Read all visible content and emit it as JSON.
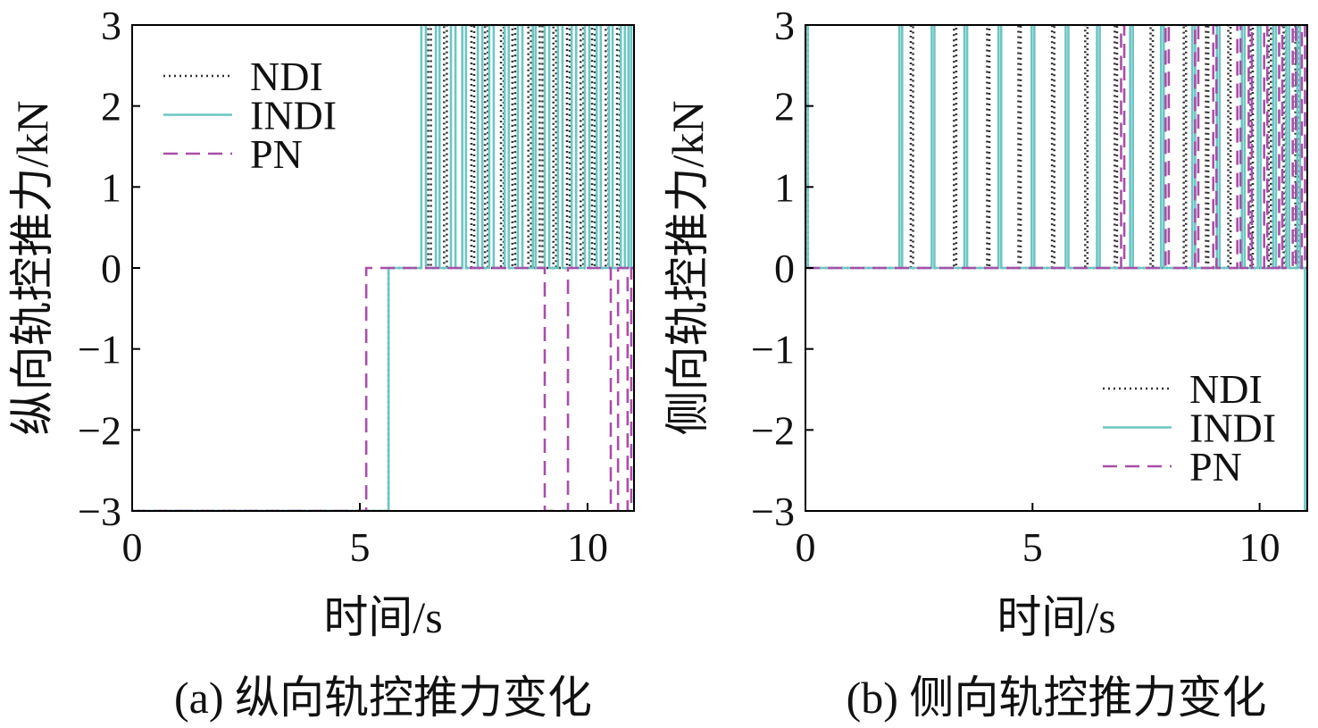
{
  "chart_data": [
    {
      "type": "line",
      "step": true,
      "caption": "(a) 纵向轨控推力变化",
      "xlabel": "时间/s",
      "ylabel": "纵向轨控推力/kN",
      "xlim": [
        0,
        11.02
      ],
      "ylim": [
        -3,
        3
      ],
      "xticks": [
        0,
        5,
        10
      ],
      "xtick_labels": [
        "0",
        "5",
        "10"
      ],
      "yticks": [
        -3,
        -2,
        -1,
        0,
        1,
        2,
        3
      ],
      "ytick_labels": [
        "−3",
        "−2",
        "−1",
        "0",
        "1",
        "2",
        "3"
      ],
      "grid": false,
      "legend": "top-left",
      "series": [
        {
          "name": "NDI",
          "color": "#333333",
          "line_style": "dotted",
          "x": [
            0,
            5.63,
            6.5,
            6.56,
            6.85,
            6.91,
            7.45,
            7.51,
            7.75,
            7.81,
            8.1,
            8.16,
            8.35,
            8.41,
            8.7,
            8.76,
            8.95,
            9.01,
            9.25,
            9.31,
            9.55,
            9.61,
            9.85,
            9.91,
            10.1,
            10.16,
            10.4,
            10.46,
            10.65,
            10.71,
            11.02
          ],
          "y": [
            -3,
            0,
            3,
            0,
            3,
            0,
            3,
            0,
            3,
            0,
            3,
            0,
            3,
            0,
            3,
            0,
            3,
            0,
            3,
            0,
            3,
            0,
            3,
            0,
            3,
            0,
            3,
            0,
            3,
            0,
            0
          ]
        },
        {
          "name": "INDI",
          "color": "#6cc6c4",
          "line_style": "solid",
          "x": [
            0,
            5.63,
            6.35,
            6.45,
            6.67,
            6.75,
            7.0,
            7.1,
            7.25,
            7.33,
            7.59,
            7.69,
            7.84,
            7.94,
            8.18,
            8.27,
            8.47,
            8.57,
            8.8,
            8.86,
            9.06,
            9.16,
            9.35,
            9.45,
            9.65,
            9.75,
            9.94,
            10.04,
            10.2,
            10.29,
            10.47,
            10.55,
            10.73,
            10.82,
            10.9,
            10.96,
            11.02
          ],
          "y": [
            -3,
            0,
            3,
            0,
            3,
            0,
            3,
            0,
            3,
            0,
            3,
            0,
            3,
            0,
            3,
            0,
            3,
            0,
            3,
            0,
            3,
            0,
            3,
            0,
            3,
            0,
            3,
            0,
            3,
            0,
            3,
            0,
            3,
            0,
            3,
            0,
            0
          ]
        },
        {
          "name": "PN",
          "color": "#a84fa8",
          "line_style": "dashed",
          "x": [
            0,
            5.14,
            9.06,
            9.57,
            10.51,
            10.67,
            10.88,
            10.96,
            11.02
          ],
          "y": [
            -3,
            0,
            -3,
            0,
            -3,
            0,
            -3,
            0,
            0
          ]
        }
      ]
    },
    {
      "type": "line",
      "step": true,
      "caption": "(b) 侧向轨控推力变化",
      "xlabel": "时间/s",
      "ylabel": "侧向轨控推力/kN",
      "xlim": [
        0,
        11.05
      ],
      "ylim": [
        -3,
        3
      ],
      "xticks": [
        0,
        5,
        10
      ],
      "xtick_labels": [
        "0",
        "5",
        "10"
      ],
      "yticks": [
        -3,
        -2,
        -1,
        0,
        1,
        2,
        3
      ],
      "ytick_labels": [
        "−3",
        "−2",
        "−1",
        "0",
        "1",
        "2",
        "3"
      ],
      "grid": false,
      "legend": "bottom-right",
      "series": [
        {
          "name": "NDI",
          "color": "#333333",
          "line_style": "dotted",
          "x": [
            0,
            0.05,
            2.32,
            2.37,
            3.27,
            3.32,
            4.0,
            4.05,
            4.69,
            4.74,
            5.43,
            5.48,
            6.16,
            6.21,
            6.81,
            6.86,
            7.6,
            7.65,
            8.33,
            8.38,
            8.82,
            8.87,
            9.31,
            9.36,
            9.8,
            9.85,
            10.2,
            10.25,
            10.53,
            10.58,
            10.79,
            10.84,
            11.05
          ],
          "y": [
            3,
            0,
            3,
            0,
            3,
            0,
            3,
            0,
            3,
            0,
            3,
            0,
            3,
            0,
            3,
            0,
            3,
            0,
            3,
            0,
            3,
            0,
            3,
            0,
            3,
            0,
            3,
            0,
            3,
            0,
            3,
            0,
            0
          ]
        },
        {
          "name": "INDI",
          "color": "#6cc6c4",
          "line_style": "solid",
          "x": [
            0,
            0.05,
            2.07,
            2.13,
            2.78,
            2.84,
            3.5,
            3.56,
            4.25,
            4.31,
            4.98,
            5.04,
            5.73,
            5.79,
            6.42,
            6.48,
            7.15,
            7.21,
            7.83,
            7.89,
            8.52,
            8.58,
            9.06,
            9.12,
            9.61,
            9.67,
            9.96,
            10.02,
            10.3,
            10.36,
            10.59,
            10.65,
            10.83,
            10.89,
            11.0,
            11.05
          ],
          "y": [
            3,
            0,
            3,
            0,
            3,
            0,
            3,
            0,
            3,
            0,
            3,
            0,
            3,
            0,
            3,
            0,
            3,
            0,
            3,
            0,
            3,
            0,
            3,
            0,
            3,
            0,
            3,
            0,
            3,
            0,
            3,
            0,
            3,
            0,
            -3,
            -3
          ]
        },
        {
          "name": "PN",
          "color": "#a84fa8",
          "line_style": "dashed",
          "x": [
            0,
            6.95,
            7.02,
            7.93,
            8.0,
            8.58,
            8.65,
            8.98,
            9.05,
            9.51,
            9.58,
            9.76,
            9.83,
            10.1,
            10.17,
            10.43,
            10.5,
            10.73,
            10.8,
            10.93,
            11.0,
            11.05
          ],
          "y": [
            0,
            3,
            0,
            3,
            0,
            3,
            0,
            3,
            0,
            3,
            0,
            3,
            0,
            3,
            0,
            3,
            0,
            3,
            0,
            3,
            0,
            0
          ]
        }
      ]
    }
  ]
}
